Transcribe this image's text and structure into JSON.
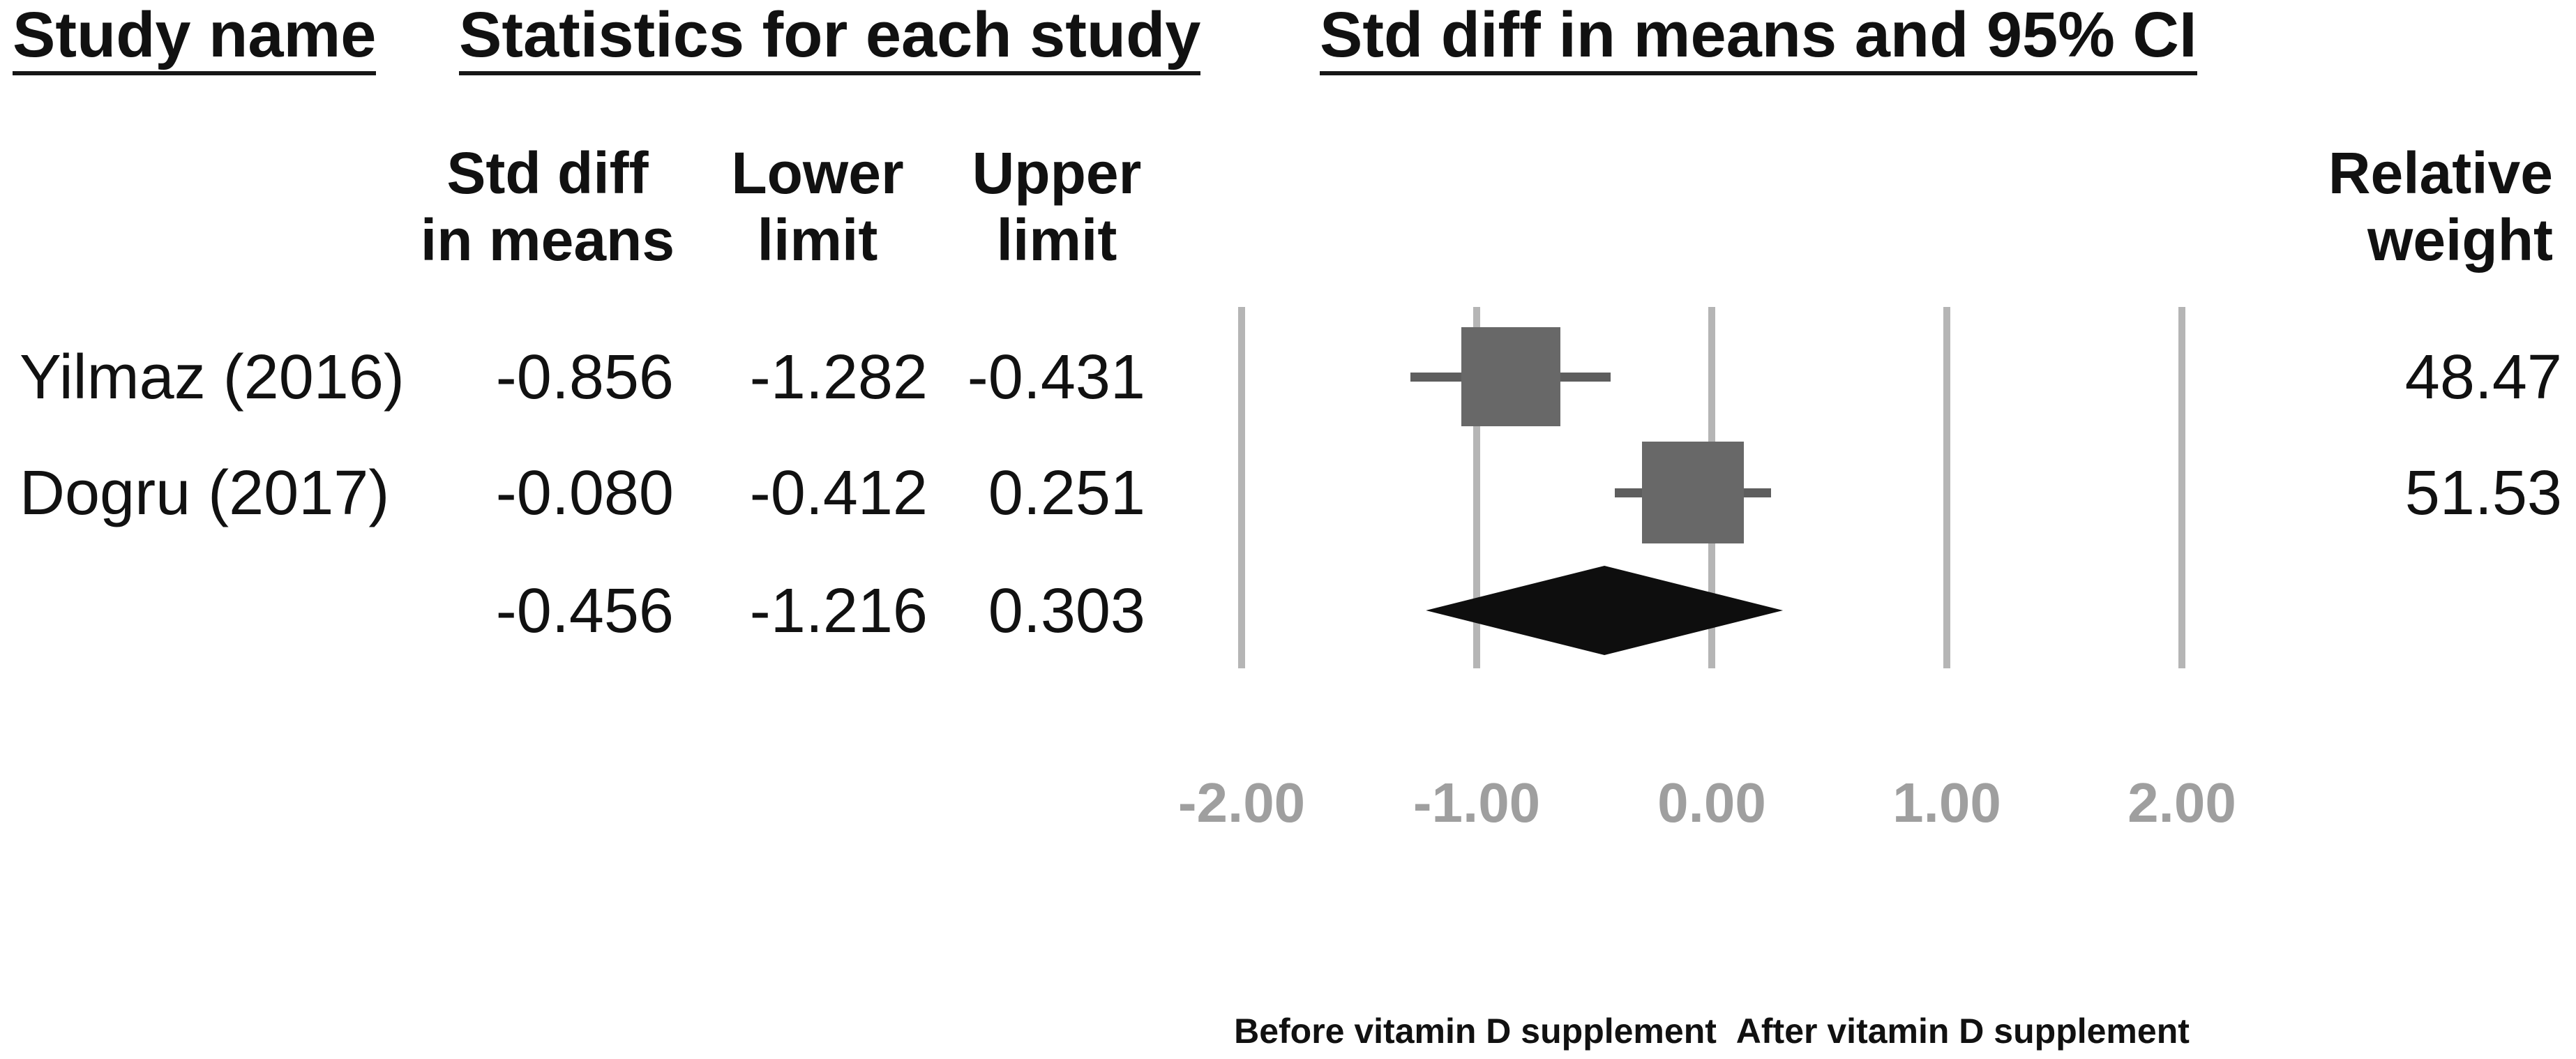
{
  "headers": {
    "study_name": "Study name",
    "statistics": "Statistics for each study",
    "ci": "Std diff in means and 95% CI"
  },
  "subheaders": {
    "std_diff_line1": "Std diff",
    "std_diff_line2": "in means",
    "lower_line1": "Lower",
    "lower_line2": "limit",
    "upper_line1": "Upper",
    "upper_line2": "limit",
    "weight_line1": "Relative",
    "weight_line2": "weight"
  },
  "rows": [
    {
      "study": "Yilmaz (2016)",
      "std_diff": "-0.856",
      "lower": "-1.282",
      "upper": "-0.431",
      "weight": "48.47"
    },
    {
      "study": "Dogru (2017)",
      "std_diff": "-0.080",
      "lower": "-0.412",
      "upper": "0.251",
      "weight": "51.53"
    },
    {
      "study": "",
      "std_diff": "-0.456",
      "lower": "-1.216",
      "upper": "0.303",
      "weight": ""
    }
  ],
  "colors": {
    "square": "#686868",
    "whisker": "#5e5e5e",
    "gridline": "#b5b5b5",
    "diamond": "#0e0e0e",
    "tick_label": "#9f9f9f",
    "text": "#111111"
  },
  "chart_data": {
    "type": "forest",
    "title": "Std diff in means and 95% CI",
    "x_ticks": [
      {
        "value": -2,
        "label": "-2.00"
      },
      {
        "value": -1,
        "label": "-1.00"
      },
      {
        "value": 0,
        "label": "0.00"
      },
      {
        "value": 1,
        "label": "1.00"
      },
      {
        "value": 2,
        "label": "2.00"
      }
    ],
    "xlim": [
      -2,
      2
    ],
    "grid": "vertical-lines-only",
    "studies": [
      {
        "name": "Yilmaz (2016)",
        "estimate": -0.856,
        "lower": -1.282,
        "upper": -0.431,
        "relative_weight": 48.47,
        "marker": "square"
      },
      {
        "name": "Dogru (2017)",
        "estimate": -0.08,
        "lower": -0.412,
        "upper": 0.251,
        "relative_weight": 51.53,
        "marker": "square"
      }
    ],
    "summary": {
      "estimate": -0.456,
      "lower": -1.216,
      "upper": 0.303,
      "marker": "diamond"
    },
    "footer_labels": [
      "Before vitamin D supplement",
      "After vitamin D supplement"
    ]
  }
}
